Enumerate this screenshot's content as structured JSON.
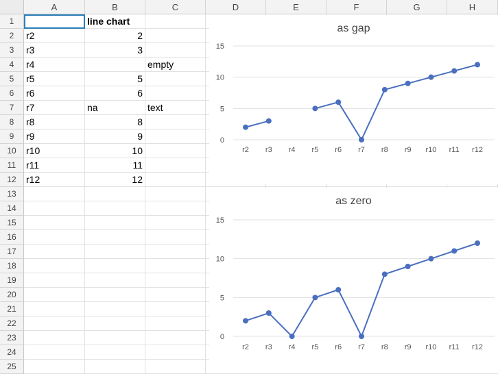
{
  "sheet": {
    "columns": [
      "A",
      "B",
      "C",
      "D",
      "E",
      "F",
      "G",
      "H"
    ],
    "rows": [
      "1",
      "2",
      "3",
      "4",
      "5",
      "6",
      "7",
      "8",
      "9",
      "10",
      "11",
      "12",
      "13",
      "14",
      "15",
      "16",
      "17",
      "18",
      "19",
      "20",
      "21",
      "22",
      "23",
      "24",
      "25"
    ],
    "cells": {
      "B1": "line chart",
      "A2": "r2",
      "B2": "2",
      "A3": "r3",
      "B3": "3",
      "A4": "r4",
      "C4": "empty",
      "A5": "r5",
      "B5": "5",
      "A6": "r6",
      "B6": "6",
      "A7": "r7",
      "B7": "na",
      "C7": "text",
      "A8": "r8",
      "B8": "8",
      "A9": "r9",
      "B9": "9",
      "A10": "r10",
      "B10": "10",
      "A11": "r11",
      "B11": "11",
      "A12": "r12",
      "B12": "12"
    },
    "selected_cell": "A1"
  },
  "colors": {
    "series": "#4a6fbf",
    "grid": "#e0e0e0",
    "header_bg": "#f3f3f3",
    "selection": "#2a7fb8"
  },
  "chart_data": [
    {
      "type": "line",
      "title": "as gap",
      "categories": [
        "r2",
        "r3",
        "r4",
        "r5",
        "r6",
        "r7",
        "r8",
        "r9",
        "r10",
        "r11",
        "r12"
      ],
      "values": [
        2,
        3,
        null,
        5,
        6,
        0,
        8,
        9,
        10,
        11,
        12
      ],
      "ylim": [
        0,
        15
      ],
      "yticks": [
        "0",
        "5",
        "10",
        "15"
      ],
      "grid": true
    },
    {
      "type": "line",
      "title": "as zero",
      "categories": [
        "r2",
        "r3",
        "r4",
        "r5",
        "r6",
        "r7",
        "r8",
        "r9",
        "r10",
        "r11",
        "r12"
      ],
      "values": [
        2,
        3,
        0,
        5,
        6,
        0,
        8,
        9,
        10,
        11,
        12
      ],
      "ylim": [
        0,
        15
      ],
      "yticks": [
        "0",
        "5",
        "10",
        "15"
      ],
      "grid": true
    }
  ]
}
